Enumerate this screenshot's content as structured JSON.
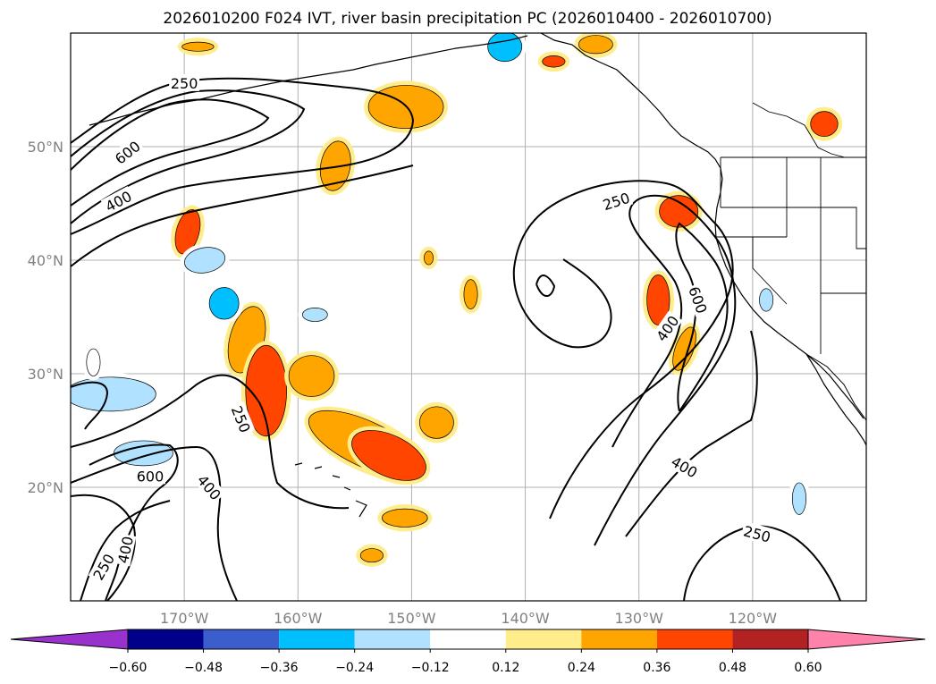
{
  "chart_data": {
    "type": "map-contour",
    "title": "2026010200 F024 IVT, river basin precipitation PC (2026010400 - 2026010700)",
    "xlim": [
      -180,
      -110
    ],
    "ylim": [
      10,
      60
    ],
    "grid": true,
    "lon_ticks": [
      {
        "value": -170,
        "label": "170°W"
      },
      {
        "value": -160,
        "label": "160°W"
      },
      {
        "value": -150,
        "label": "150°W"
      },
      {
        "value": -140,
        "label": "140°W"
      },
      {
        "value": -130,
        "label": "130°W"
      },
      {
        "value": -120,
        "label": "120°W"
      }
    ],
    "lat_ticks": [
      {
        "value": 20,
        "label": "20°N"
      },
      {
        "value": 30,
        "label": "30°N"
      },
      {
        "value": 40,
        "label": "40°N"
      },
      {
        "value": 50,
        "label": "50°N"
      }
    ],
    "ivt_contour_levels": [
      250,
      400,
      600
    ],
    "ivt_contour_labels": [
      {
        "text": "250",
        "lon": -170,
        "lat": 55.6,
        "rot": 0
      },
      {
        "text": "600",
        "lon": -175,
        "lat": 49.5,
        "rot": -38
      },
      {
        "text": "400",
        "lon": -175.8,
        "lat": 45.2,
        "rot": -28
      },
      {
        "text": "250",
        "lon": -132,
        "lat": 45.2,
        "rot": -18
      },
      {
        "text": "600",
        "lon": -124.8,
        "lat": 36.5,
        "rot": 70
      },
      {
        "text": "400",
        "lon": -127.5,
        "lat": 34.0,
        "rot": -55
      },
      {
        "text": "250",
        "lon": -165,
        "lat": 26.0,
        "rot": 68
      },
      {
        "text": "600",
        "lon": -173,
        "lat": 21.0,
        "rot": 0
      },
      {
        "text": "400",
        "lon": -167.8,
        "lat": 20.0,
        "rot": 50
      },
      {
        "text": "400",
        "lon": -175.2,
        "lat": 14.5,
        "rot": -78
      },
      {
        "text": "250",
        "lon": -177.1,
        "lat": 13.0,
        "rot": -60
      },
      {
        "text": "400",
        "lon": -126.0,
        "lat": 21.8,
        "rot": 30
      },
      {
        "text": "250",
        "lon": -119.6,
        "lat": 15.9,
        "rot": 15
      }
    ],
    "colorbar": {
      "extend": "both",
      "boundaries": [
        -0.72,
        -0.6,
        -0.48,
        -0.36,
        -0.24,
        -0.12,
        0.12,
        0.24,
        0.36,
        0.48,
        0.6,
        0.72
      ],
      "colors": [
        "#9932cc",
        "#00008b",
        "#3a5fcd",
        "#00bfff",
        "#b0e2ff",
        "#ffffff",
        "#ffec8b",
        "#ffa500",
        "#ff4500",
        "#b22222",
        "#ff82ab"
      ],
      "tick_labels": [
        "−0.60",
        "−0.48",
        "−0.36",
        "−0.24",
        "−0.12",
        "0.12",
        "0.24",
        "0.36",
        "0.48",
        "0.60"
      ]
    },
    "pc_regions": [
      {
        "lon": -150.5,
        "lat": 53.5,
        "rx": 3.3,
        "ry": 1.9,
        "rot": 0,
        "level": 0.24
      },
      {
        "lon": -156.7,
        "lat": 48.3,
        "rx": 1.3,
        "ry": 2.2,
        "rot": 10,
        "level": 0.24
      },
      {
        "lon": -168.8,
        "lat": 58.8,
        "rx": 1.4,
        "ry": 0.4,
        "rot": 0,
        "level": 0.24
      },
      {
        "lon": -113.7,
        "lat": 52.0,
        "rx": 1.2,
        "ry": 1.1,
        "rot": 0,
        "level": 0.36
      },
      {
        "lon": -137.5,
        "lat": 57.5,
        "rx": 1.0,
        "ry": 0.5,
        "rot": 0,
        "level": 0.36
      },
      {
        "lon": -133.8,
        "lat": 59.0,
        "rx": 1.5,
        "ry": 0.8,
        "rot": 0,
        "level": 0.24
      },
      {
        "lon": -126.5,
        "lat": 44.3,
        "rx": 1.7,
        "ry": 1.4,
        "rot": 0,
        "level": 0.36
      },
      {
        "lon": -128.3,
        "lat": 36.5,
        "rx": 1.0,
        "ry": 2.2,
        "rot": 0,
        "level": 0.36
      },
      {
        "lon": -126.0,
        "lat": 32.2,
        "rx": 0.8,
        "ry": 2.0,
        "rot": 20,
        "level": 0.24
      },
      {
        "lon": -169.7,
        "lat": 42.5,
        "rx": 1.0,
        "ry": 2.0,
        "rot": 15,
        "level": 0.36
      },
      {
        "lon": -164.5,
        "lat": 33.0,
        "rx": 1.5,
        "ry": 3.0,
        "rot": 15,
        "level": 0.24
      },
      {
        "lon": -162.8,
        "lat": 28.5,
        "rx": 1.8,
        "ry": 4.0,
        "rot": 0,
        "level": 0.36
      },
      {
        "lon": -158.8,
        "lat": 29.8,
        "rx": 2.0,
        "ry": 1.8,
        "rot": 0,
        "level": 0.24
      },
      {
        "lon": -154.0,
        "lat": 23.8,
        "rx": 5.5,
        "ry": 2.0,
        "rot": 25,
        "level": 0.24
      },
      {
        "lon": -152.0,
        "lat": 22.8,
        "rx": 3.5,
        "ry": 1.8,
        "rot": 25,
        "level": 0.36
      },
      {
        "lon": -147.8,
        "lat": 25.7,
        "rx": 1.5,
        "ry": 1.4,
        "rot": 0,
        "level": 0.24
      },
      {
        "lon": -150.6,
        "lat": 17.3,
        "rx": 2.0,
        "ry": 0.8,
        "rot": 0,
        "level": 0.24
      },
      {
        "lon": -144.8,
        "lat": 37.0,
        "rx": 0.6,
        "ry": 1.3,
        "rot": 0,
        "level": 0.24
      },
      {
        "lon": -153.5,
        "lat": 14.0,
        "rx": 1.0,
        "ry": 0.6,
        "rot": 0,
        "level": 0.24
      },
      {
        "lon": -148.5,
        "lat": 40.2,
        "rx": 0.4,
        "ry": 0.6,
        "rot": 0,
        "level": 0.24
      },
      {
        "lon": -168.2,
        "lat": 40.0,
        "rx": 1.8,
        "ry": 1.1,
        "rot": -10,
        "level": -0.24
      },
      {
        "lon": -166.5,
        "lat": 36.2,
        "rx": 1.3,
        "ry": 1.4,
        "rot": 0,
        "level": -0.36
      },
      {
        "lon": -158.5,
        "lat": 35.2,
        "rx": 1.1,
        "ry": 0.6,
        "rot": 0,
        "level": -0.24
      },
      {
        "lon": -176.5,
        "lat": 28.2,
        "rx": 4.0,
        "ry": 1.5,
        "rot": 0,
        "level": -0.24
      },
      {
        "lon": -173.6,
        "lat": 23.0,
        "rx": 2.6,
        "ry": 1.1,
        "rot": 0,
        "level": -0.24
      },
      {
        "lon": -141.8,
        "lat": 58.8,
        "rx": 1.5,
        "ry": 1.3,
        "rot": 0,
        "level": -0.36
      },
      {
        "lon": -118.8,
        "lat": 36.5,
        "rx": 0.6,
        "ry": 1.0,
        "rot": 0,
        "level": -0.24
      },
      {
        "lon": -115.9,
        "lat": 19.0,
        "rx": 0.6,
        "ry": 1.4,
        "rot": 0,
        "level": -0.24
      },
      {
        "lon": -178.0,
        "lat": 31.0,
        "rx": 0.6,
        "ry": 1.2,
        "rot": 0,
        "level": -0.12
      }
    ]
  }
}
